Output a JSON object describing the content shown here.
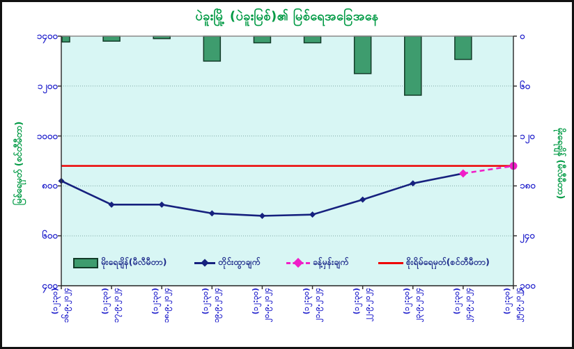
{
  "title": "ပဲခူးမြို့ (ပဲခူးမြစ်)၏ မြစ်ရေအခြေအနေ",
  "axes": {
    "left": {
      "title": "မြစ်ရေမှတ် (စင်တီမီတာ)",
      "tick_labels": [
        "၁၄၀၀",
        "၁၂၀၀",
        "၁၀၀၀",
        "၈၀၀",
        "၆၀၀",
        "၄၀၀"
      ]
    },
    "right": {
      "title": "မိုးရေချိန် (မီလီမီတာ)",
      "tick_labels": [
        "၀",
        "၆၀",
        "၁၂၀",
        "၁၈၀",
        "၂၄၀",
        "၃၀၀"
      ]
    },
    "x": {
      "labels": [
        {
          "date": "၁၆.၉.၂၀၂၄",
          "time": "(၁၂:၃၀)"
        },
        {
          "date": "၁၇.၉.၂၀၂၄",
          "time": "(၁၂:၃၀)"
        },
        {
          "date": "၁၈.၉.၂၀၂၄",
          "time": "(၁၂:၃၀)"
        },
        {
          "date": "၁၉.၉.၂၀၂၄",
          "time": "(၁၂:၃၀)"
        },
        {
          "date": "၂၀.၉.၂၀၂၄",
          "time": "(၁၂:၃၀)"
        },
        {
          "date": "၂၁.၉.၂၀၂၄",
          "time": "(၁၂:၃၀)"
        },
        {
          "date": "၂၂.၉.၂၀၂၄",
          "time": "(၁၂:၃၀)"
        },
        {
          "date": "၂၃.၉.၂၀၂၄",
          "time": "(၁၂:၃၀)"
        },
        {
          "date": "၂၄.၉.၂၀၂၄",
          "time": "(၁၂:၃၀)"
        },
        {
          "date": "၂၅.၉.၂၀၂၄",
          "time": "(၁၂:၃၀)"
        }
      ]
    }
  },
  "chart_data": {
    "type": "combo (bar + line + dashed forecast + reference line)",
    "categories": [
      "၁၆.၉.၂၀၂၄ (၁၂:၃၀)",
      "၁၇.၉.၂၀၂၄ (၁၂:၃၀)",
      "၁၈.၉.၂၀၂၄ (၁၂:၃၀)",
      "၁၉.၉.၂၀၂၄ (၁၂:၃၀)",
      "၂၀.၉.၂၀၂၄ (၁၂:၃၀)",
      "၂၁.၉.၂၀၂၄ (၁၂:၃၀)",
      "၂၂.၉.၂၀၂၄ (၁၂:၃၀)",
      "၂၃.၉.၂၀၂၄ (၁၂:၃၀)",
      "၂၄.၉.၂၀၂၄ (၁၂:၃၀)",
      "၂၅.၉.၂၀၂၄ (၁၂:၃၀)"
    ],
    "left_axis": {
      "label": "မြစ်ရေမှတ် (စင်တီမီတာ)",
      "min": 400,
      "max": 1400,
      "step": 200
    },
    "right_axis": {
      "label": "မိုးရေချိန် (မီလီမီတာ)",
      "min": 0,
      "max": 300,
      "step": 60,
      "direction": "increases downward, bars hang from top"
    },
    "series": [
      {
        "name": "မိုးရေချိန်(မီလီမီတာ)",
        "type": "bar",
        "axis": "right",
        "values": [
          7,
          6,
          3,
          30,
          8,
          8,
          45,
          71,
          28,
          null
        ]
      },
      {
        "name": "တိုင်းထွာချက်",
        "type": "line",
        "axis": "left",
        "values": [
          820,
          725,
          725,
          690,
          680,
          685,
          745,
          810,
          850,
          null
        ]
      },
      {
        "name": "ခန့်မှန်းချက်",
        "type": "dashed-line",
        "axis": "left",
        "values": [
          null,
          null,
          null,
          null,
          null,
          null,
          null,
          null,
          850,
          880
        ]
      },
      {
        "name": "စိုးရိမ်ရေမှတ်(စင်တီမီတာ)",
        "type": "reference-line",
        "axis": "left",
        "value": 880
      }
    ],
    "grid": "horizontal dotted lines every 200 cm / 60 mm",
    "legend_position": "inside plot, bottom row"
  },
  "legend": {
    "items": [
      {
        "label": "မိုးရေချိန်(မီလီမီတာ)",
        "marker": "green-bar-swatch"
      },
      {
        "label": "တိုင်းထွာချက်",
        "marker": "navy-line-diamond"
      },
      {
        "label": "ခန့်မှန်းချက်",
        "marker": "magenta-dashed-diamond"
      },
      {
        "label": "စိုးရိမ်ရေမှတ်(စင်တီမီတာ)",
        "marker": "red-solid-line"
      }
    ]
  },
  "colors": {
    "plot_bg": "#D8F6F4",
    "bar_fill": "#3E9C6E",
    "bar_stroke": "#123B28",
    "observed_line": "#16217E",
    "forecast_line": "#F01FC8",
    "danger_line": "#EE0000",
    "tick_label": "#2222CC",
    "axis_title": "#009A44",
    "title": "#009A44",
    "legend_text": "#1F2D8C",
    "grid_line": "#7FA8A4"
  }
}
